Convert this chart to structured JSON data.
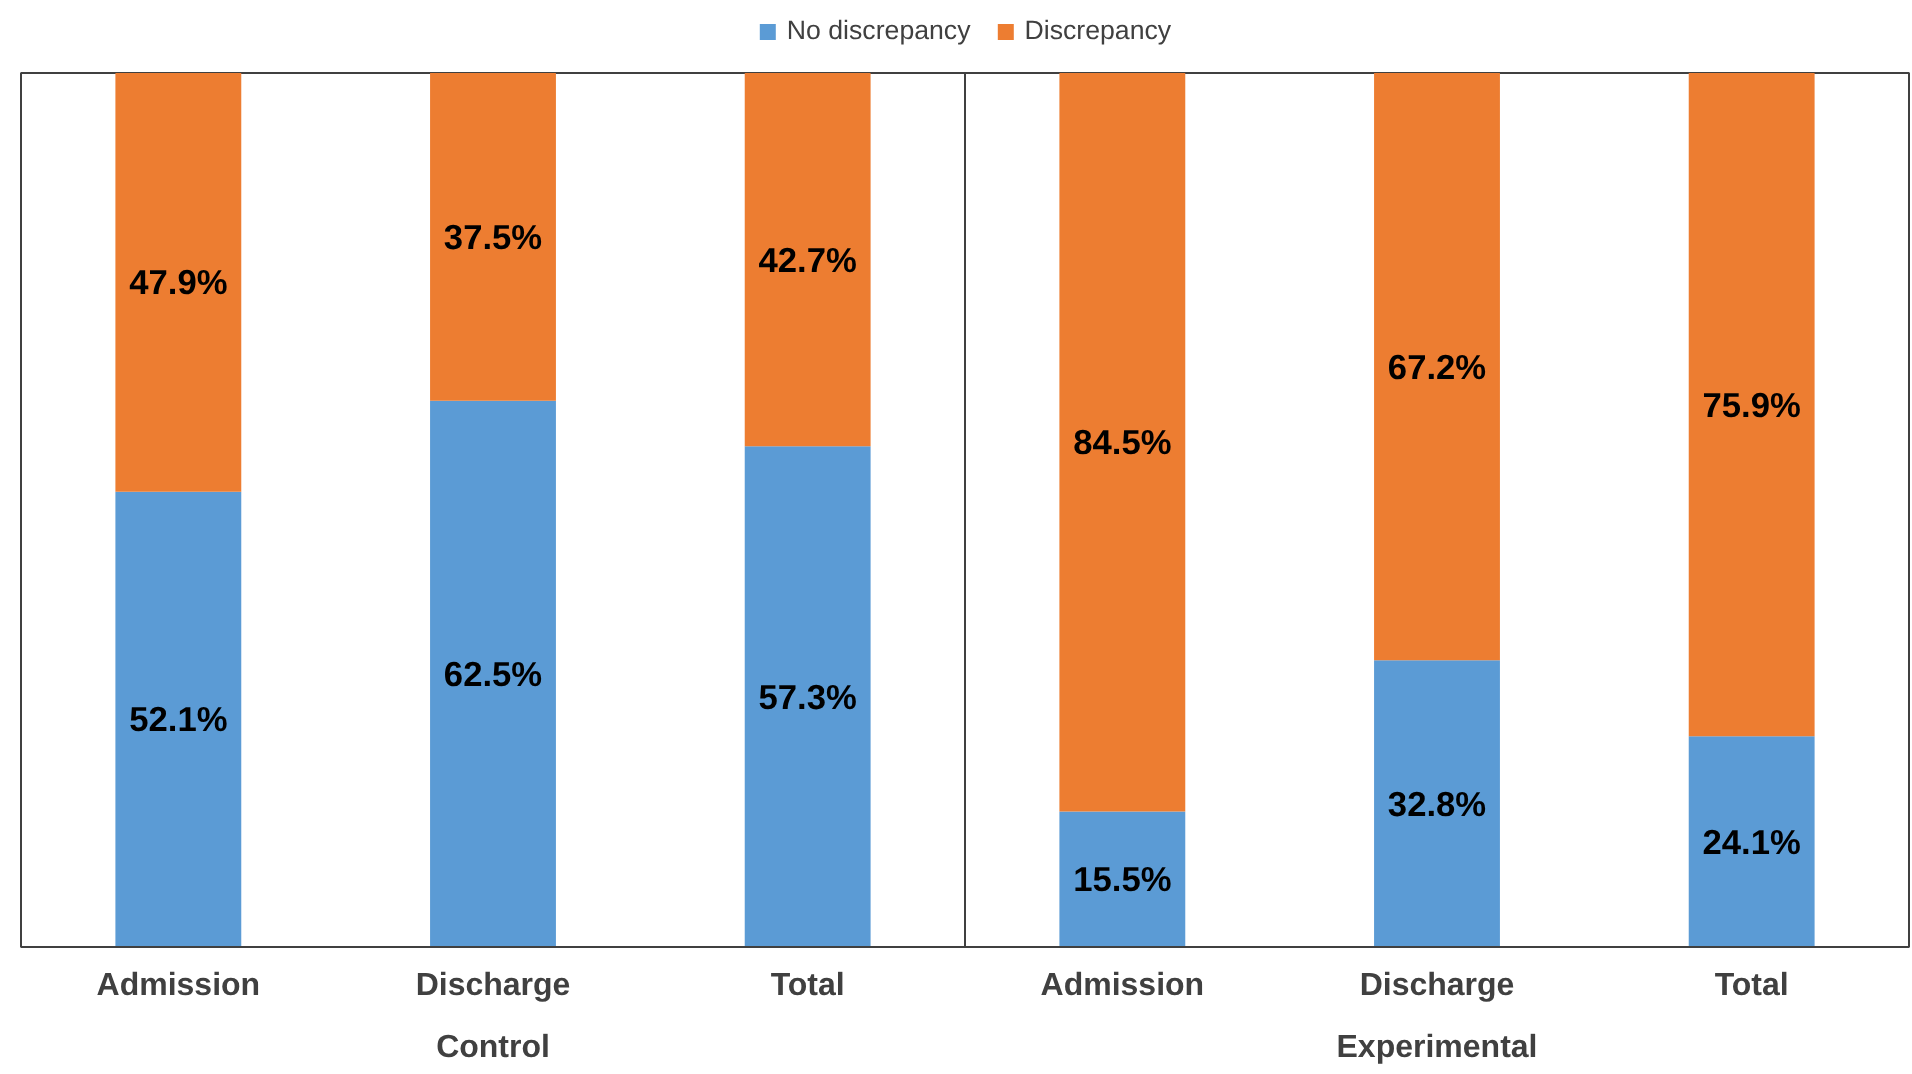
{
  "chart_data": {
    "type": "bar",
    "stacked": true,
    "categories": [
      "Admission",
      "Discharge",
      "Total",
      "Admission",
      "Discharge",
      "Total"
    ],
    "series": [
      {
        "name": "No discrepancy",
        "color": "#5b9bd5",
        "values": [
          52.1,
          62.5,
          57.3,
          15.5,
          32.8,
          24.1
        ],
        "value_labels": [
          "52.1%",
          "62.5%",
          "57.3%",
          "15.5%",
          "32.8%",
          "24.1%"
        ]
      },
      {
        "name": "Discrepancy",
        "color": "#ed7d31",
        "values": [
          47.9,
          37.5,
          42.7,
          84.5,
          67.2,
          75.9
        ],
        "value_labels": [
          "47.9%",
          "37.5%",
          "42.7%",
          "84.5%",
          "67.2%",
          "75.9%"
        ]
      }
    ],
    "annotations": [
      "Control",
      "Experimental"
    ],
    "legend": "top",
    "ylim": [
      0,
      100
    ]
  }
}
